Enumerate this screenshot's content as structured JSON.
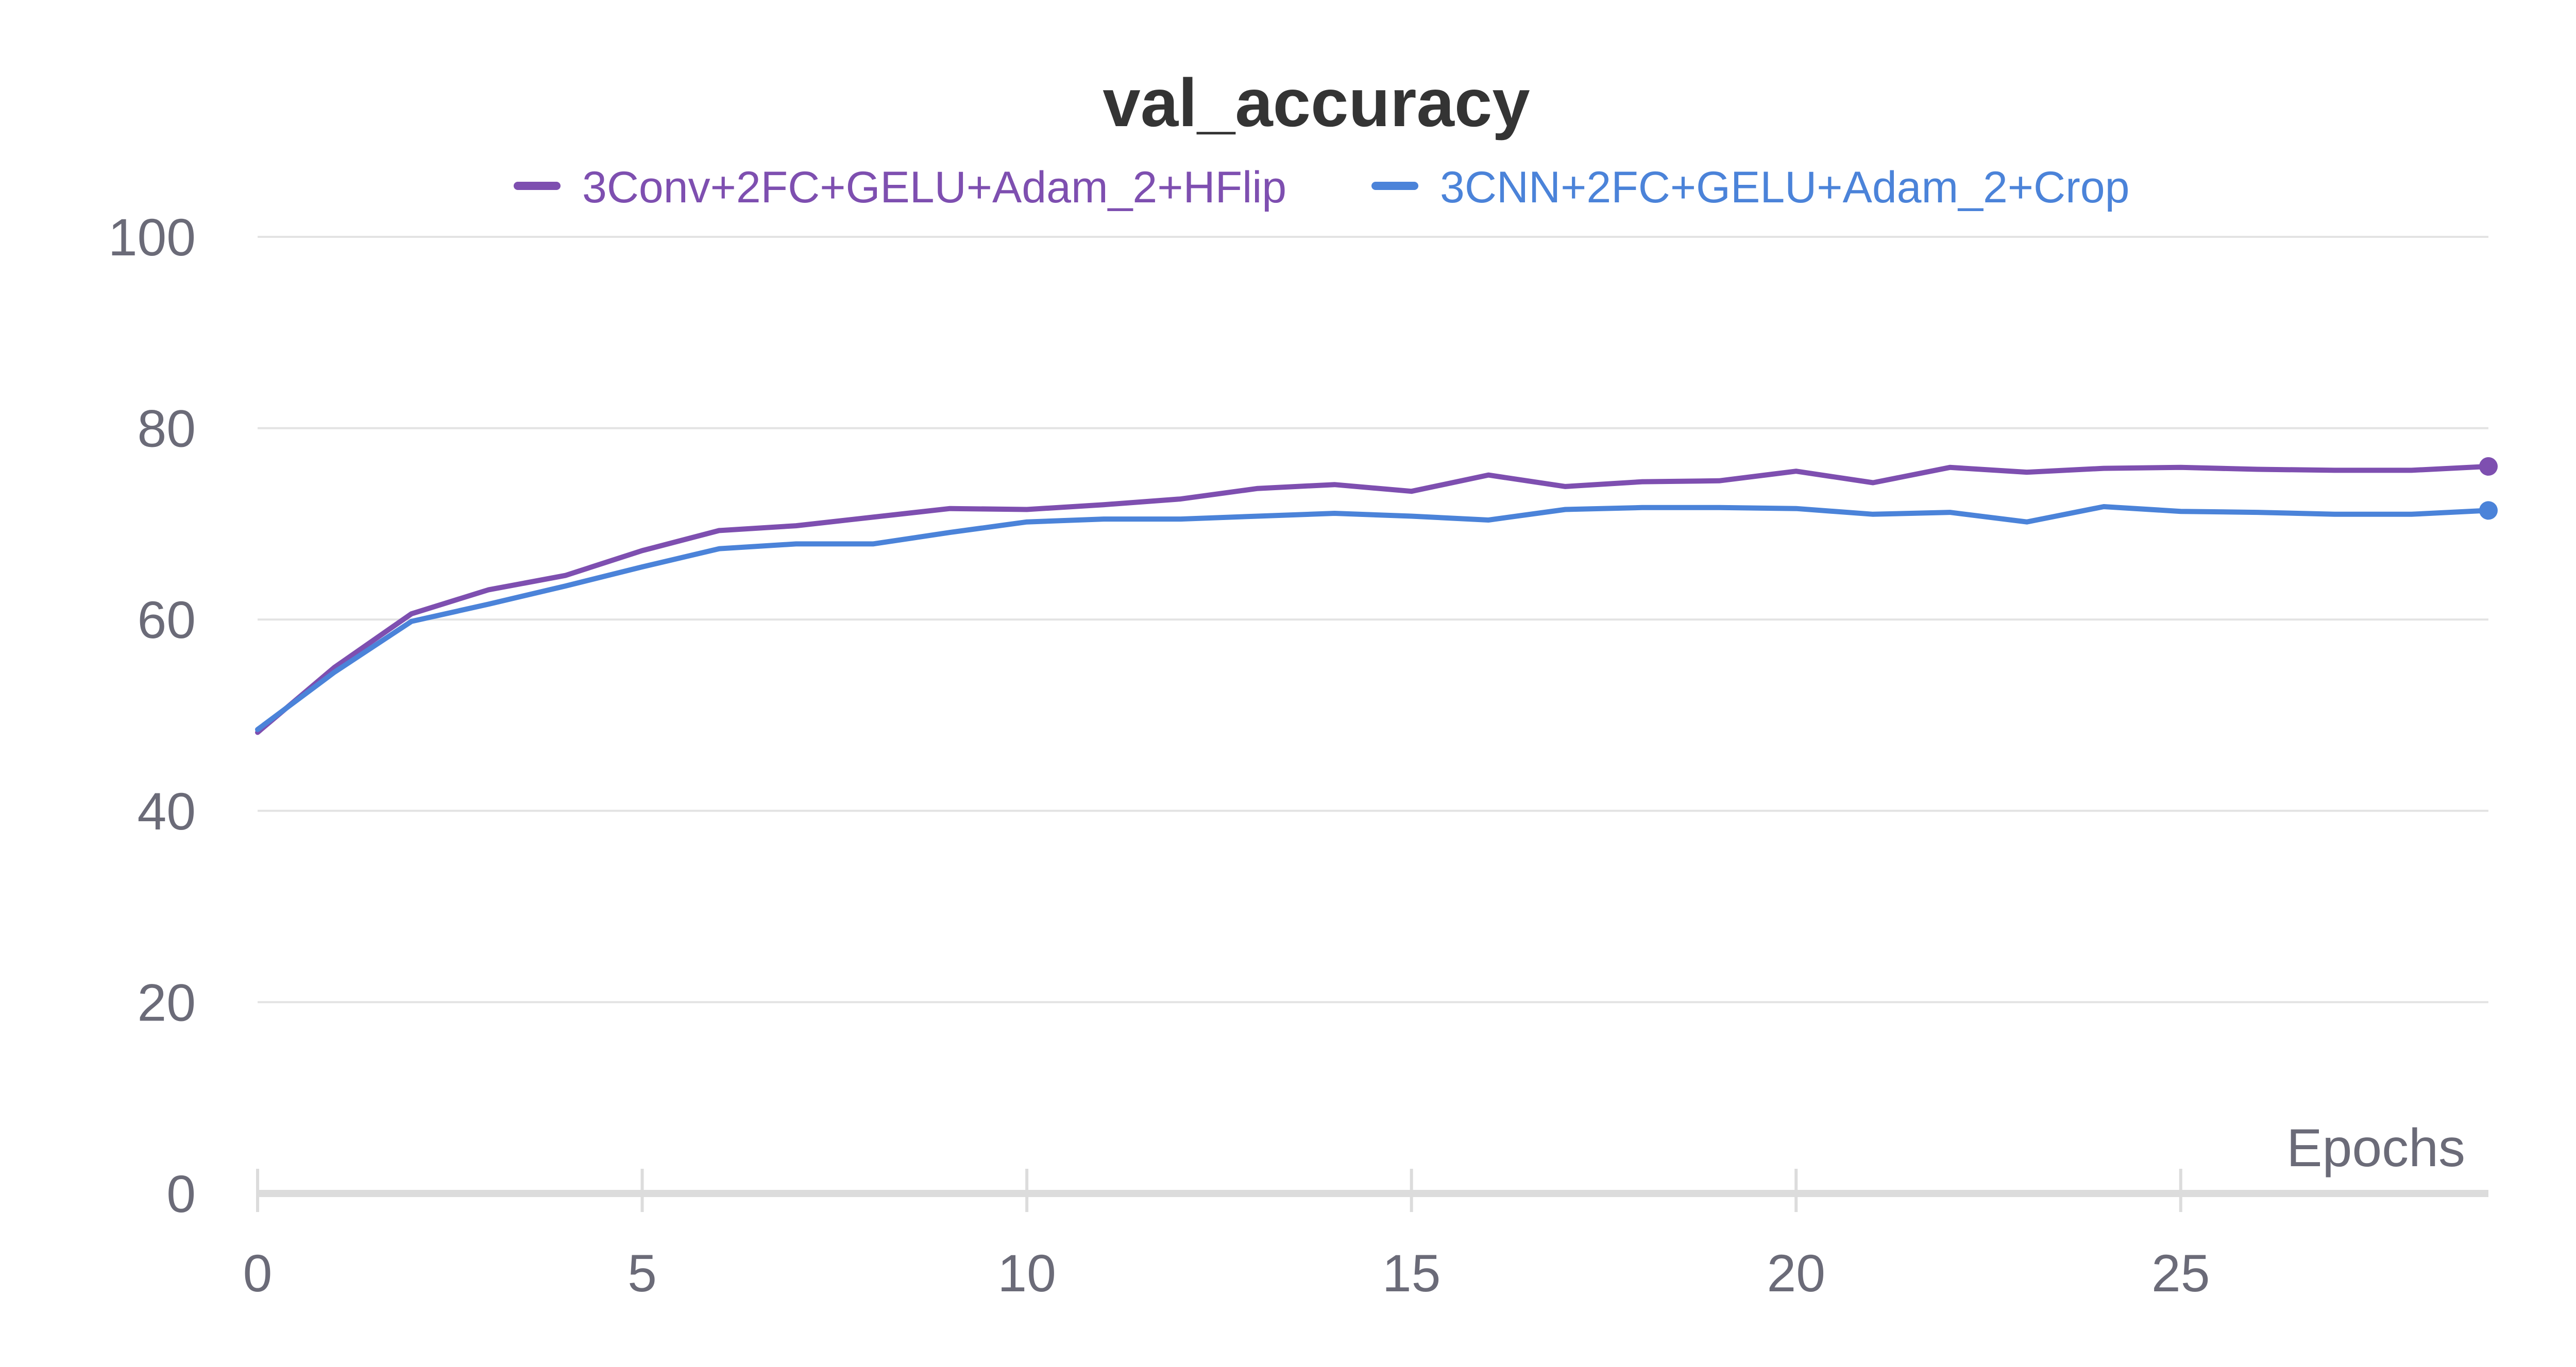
{
  "chart_data": {
    "type": "line",
    "title": "val_accuracy",
    "xlabel": "Epochs",
    "ylabel": "",
    "xlim": [
      0,
      29
    ],
    "ylim": [
      0,
      100
    ],
    "xticks": [
      0,
      5,
      10,
      15,
      20,
      25
    ],
    "yticks": [
      0,
      20,
      40,
      60,
      80,
      100
    ],
    "grid": true,
    "legend_position": "top",
    "series": [
      {
        "name": "3Conv+2FC+GELU+Adam_2+HFlip",
        "color": "#7e4fb0",
        "x": [
          0,
          1,
          2,
          3,
          4,
          5,
          6,
          7,
          8,
          9,
          10,
          11,
          12,
          13,
          14,
          15,
          16,
          17,
          18,
          19,
          20,
          21,
          22,
          23,
          24,
          25,
          26,
          27,
          28,
          29
        ],
        "y": [
          48.2,
          55.0,
          60.6,
          63.1,
          64.6,
          67.2,
          69.3,
          69.8,
          70.7,
          71.6,
          71.5,
          72.0,
          72.6,
          73.7,
          74.1,
          73.4,
          75.1,
          73.9,
          74.4,
          74.5,
          75.5,
          74.3,
          75.9,
          75.4,
          75.8,
          75.9,
          75.7,
          75.6,
          75.6,
          76.0
        ]
      },
      {
        "name": "3CNN+2FC+GELU+Adam_2+Crop",
        "color": "#4b83d9",
        "x": [
          0,
          1,
          2,
          3,
          4,
          5,
          6,
          7,
          8,
          9,
          10,
          11,
          12,
          13,
          14,
          15,
          16,
          17,
          18,
          19,
          20,
          21,
          22,
          23,
          24,
          25,
          26,
          27,
          28,
          29
        ],
        "y": [
          48.5,
          54.5,
          59.8,
          61.6,
          63.5,
          65.5,
          67.4,
          67.9,
          67.9,
          69.1,
          70.2,
          70.5,
          70.5,
          70.8,
          71.1,
          70.8,
          70.4,
          71.5,
          71.7,
          71.7,
          71.6,
          71.0,
          71.2,
          70.2,
          71.8,
          71.3,
          71.2,
          71.0,
          71.0,
          71.4
        ]
      }
    ]
  }
}
